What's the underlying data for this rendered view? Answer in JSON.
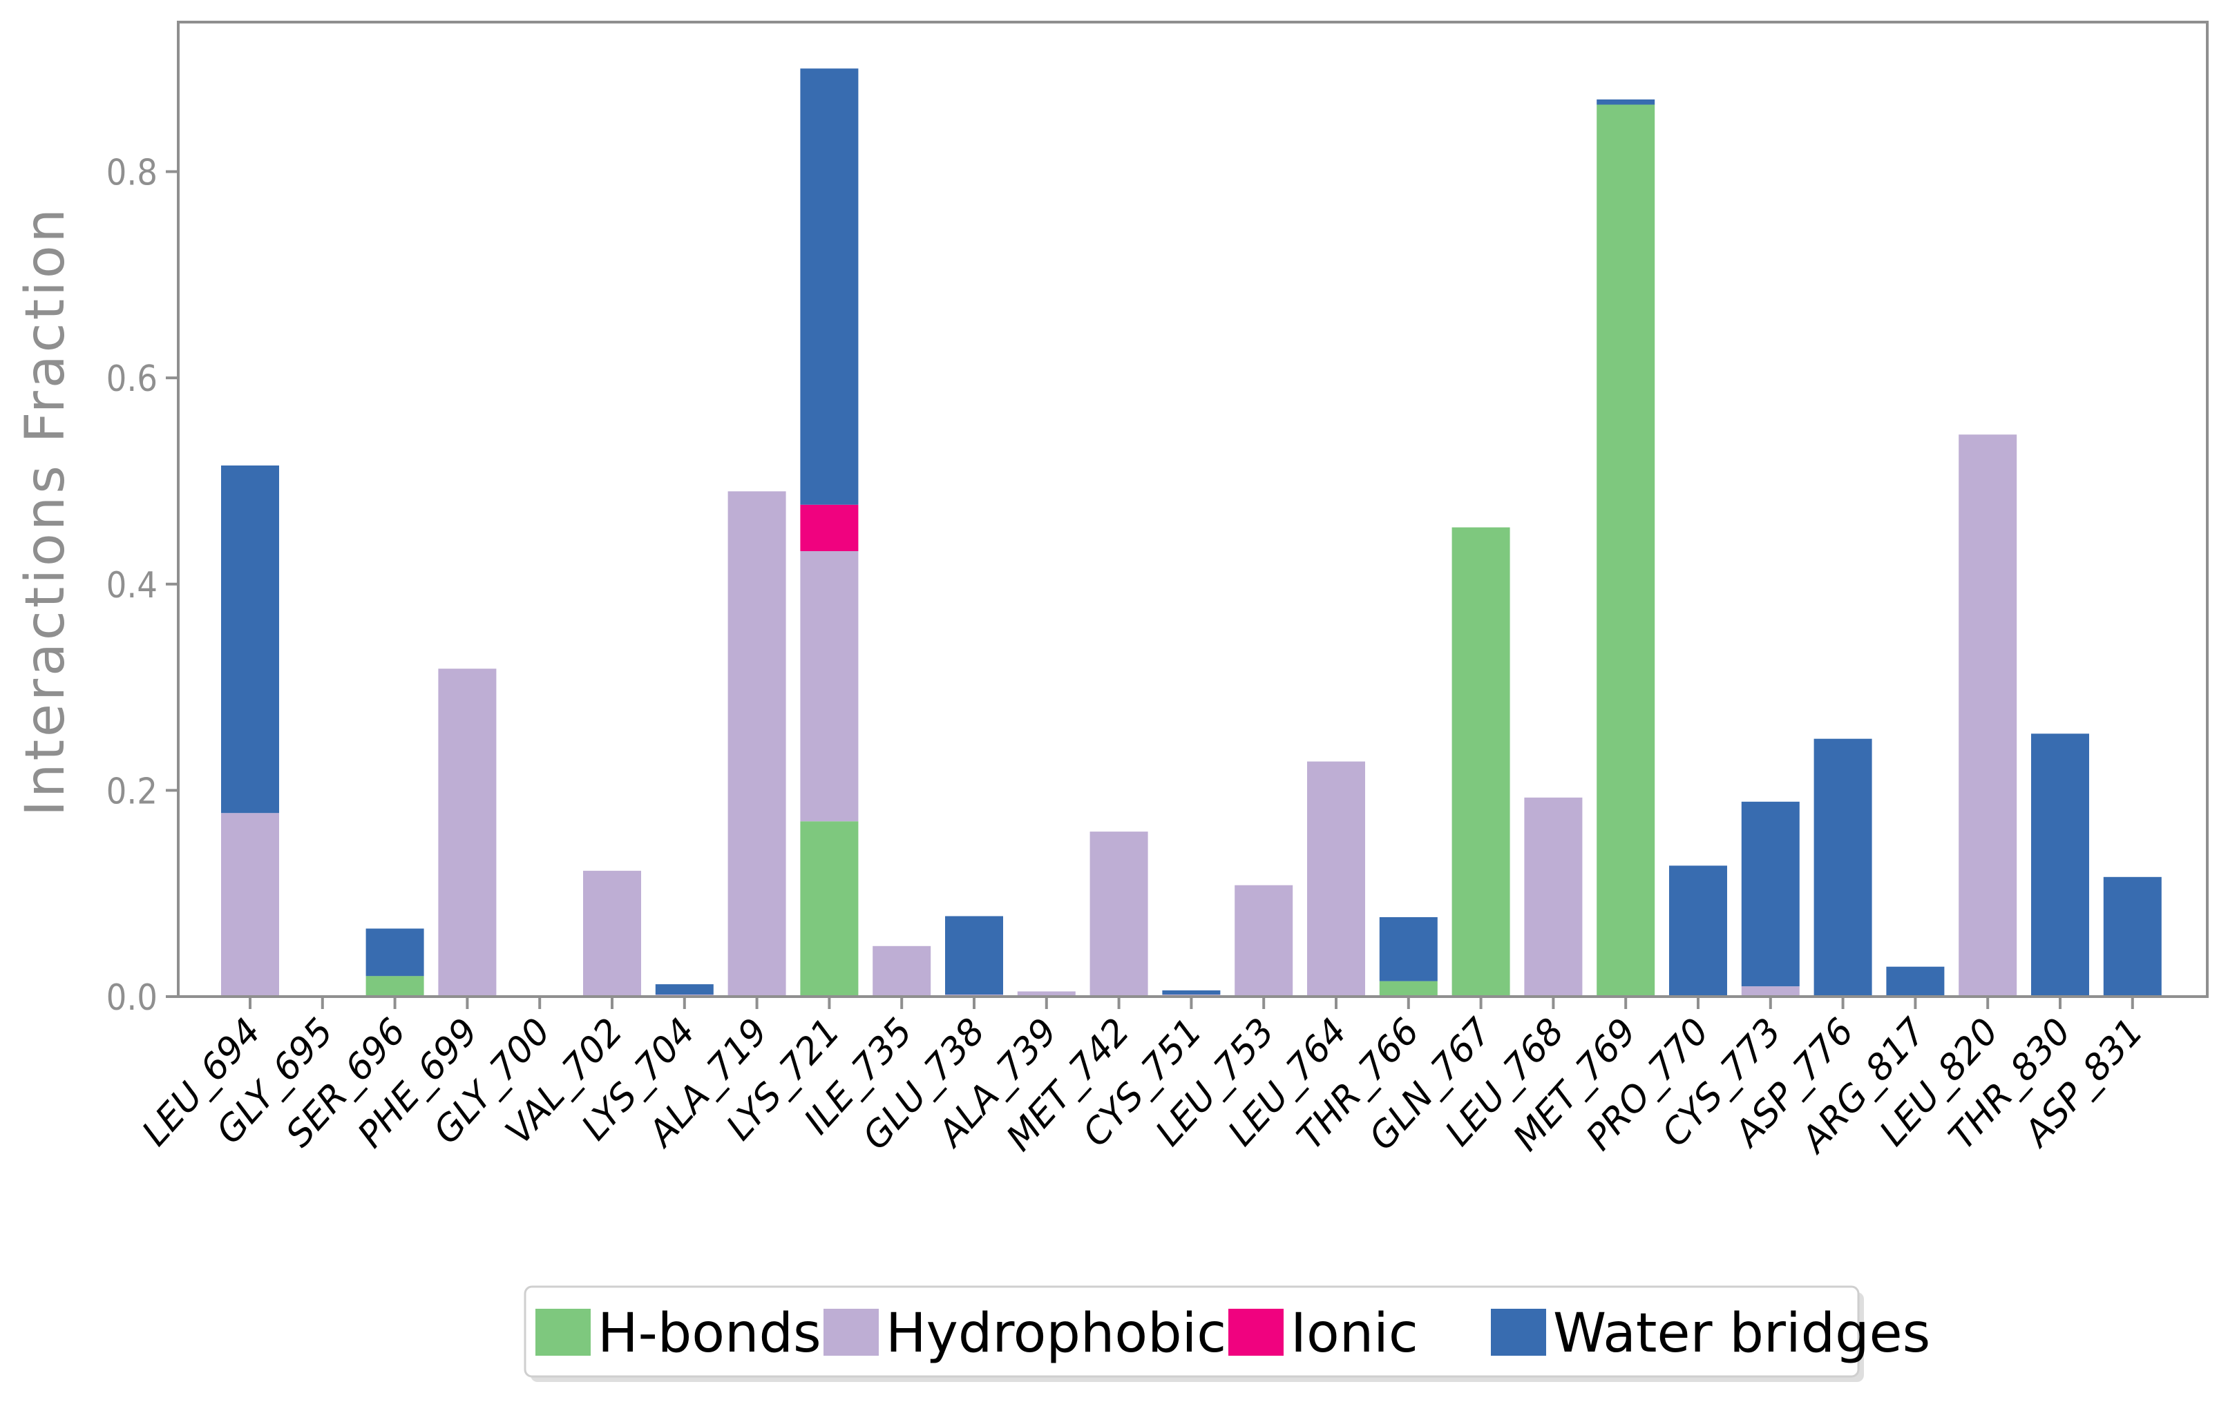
{
  "chart_data": {
    "type": "bar",
    "stacked": true,
    "title": "",
    "xlabel": "",
    "ylabel": "Interactions Fraction",
    "ylim": [
      0,
      0.945
    ],
    "yticks": [
      0.0,
      0.2,
      0.4,
      0.6,
      0.8
    ],
    "ytick_labels": [
      "0.0",
      "0.2",
      "0.4",
      "0.6",
      "0.8"
    ],
    "grid": false,
    "legend_position": "bottom-center",
    "categories": [
      "LEU_694",
      "GLY_695",
      "SER_696",
      "PHE_699",
      "GLY_700",
      "VAL_702",
      "LYS_704",
      "ALA_719",
      "LYS_721",
      "ILE_735",
      "GLU_738",
      "ALA_739",
      "MET_742",
      "CYS_751",
      "LEU_753",
      "LEU_764",
      "THR_766",
      "GLN_767",
      "LEU_768",
      "MET_769",
      "PRO_770",
      "CYS_773",
      "ASP_776",
      "ARG_817",
      "LEU_820",
      "THR_830",
      "ASP_831"
    ],
    "series": [
      {
        "name": "H-bonds",
        "color": "#7ec87e",
        "values": [
          0,
          0,
          0.02,
          0,
          0,
          0,
          0,
          0,
          0.17,
          0,
          0,
          0,
          0,
          0,
          0,
          0,
          0.015,
          0.455,
          0,
          0.865,
          0,
          0,
          0,
          0,
          0,
          0,
          0
        ]
      },
      {
        "name": "Hydrophobic",
        "color": "#beaed4",
        "values": [
          0.178,
          0,
          0,
          0.318,
          0,
          0.122,
          0.002,
          0.49,
          0.262,
          0.049,
          0.002,
          0.005,
          0.16,
          0.002,
          0.108,
          0.228,
          0,
          0,
          0.193,
          0,
          0,
          0.01,
          0,
          0,
          0.545,
          0,
          0
        ]
      },
      {
        "name": "Ionic",
        "color": "#f0027f",
        "values": [
          0,
          0,
          0,
          0,
          0,
          0,
          0,
          0,
          0.045,
          0,
          0,
          0,
          0,
          0,
          0,
          0,
          0,
          0,
          0,
          0,
          0,
          0,
          0,
          0,
          0,
          0,
          0
        ]
      },
      {
        "name": "Water bridges",
        "color": "#386cb0",
        "values": [
          0.337,
          0,
          0.046,
          0,
          0,
          0,
          0.01,
          0,
          0.423,
          0,
          0.076,
          0,
          0,
          0.004,
          0,
          0,
          0.062,
          0,
          0,
          0.005,
          0.127,
          0.179,
          0.25,
          0.029,
          0,
          0.255,
          0.116
        ]
      }
    ]
  }
}
